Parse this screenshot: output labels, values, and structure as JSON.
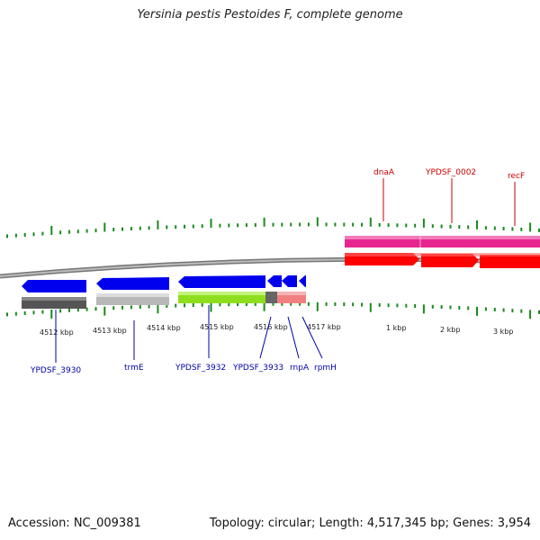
{
  "title": "Yersinia pestis Pestoides F, complete genome",
  "footer": {
    "accession": "Accession: NC_009381",
    "summary": "Topology: circular; Length: 4,517,345 bp; Genes: 3,954"
  },
  "scale_labels": [
    "4512 kbp",
    "4513 kbp",
    "4514 kbp",
    "4515 kbp",
    "4516 kbp",
    "4517 kbp",
    "1 kbp",
    "2 kbp",
    "3 kbp"
  ],
  "forward_genes": [
    "dnaA",
    "YPDSF_0002",
    "recF"
  ],
  "reverse_genes": [
    "YPDSF_3930",
    "trmE",
    "YPDSF_3932",
    "YPDSF_3933",
    "rnpA",
    "rpmH"
  ],
  "colors": {
    "forward_label": "#cc0000",
    "reverse_label": "#0000aa",
    "forward_gene": "#ff0000",
    "forward_band": "#e8258f",
    "reverse_gene": "#0000ee",
    "tick": "#1a8a1a",
    "backbone": "#666666"
  }
}
